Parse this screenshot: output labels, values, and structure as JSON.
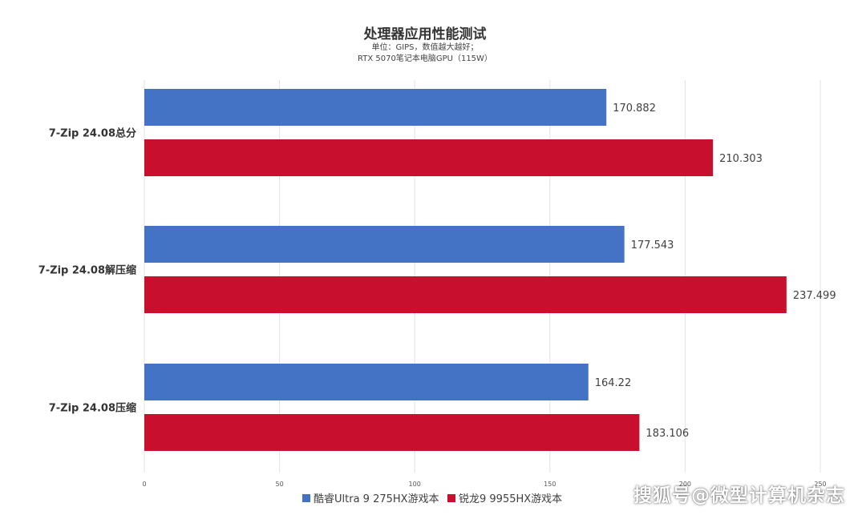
{
  "chart_data": {
    "type": "bar",
    "orientation": "horizontal",
    "title": "处理器应用性能测试",
    "subtitle_lines": [
      "单位：GIPS，数值越大越好；",
      "RTX 5070笔记本电脑GPU（115W）"
    ],
    "categories": [
      "7-Zip 24.08总分",
      "7-Zip 24.08解压缩",
      "7-Zip 24.08压缩"
    ],
    "series": [
      {
        "name": "酷睿Ultra 9 275HX游戏本",
        "color": "#4472c4",
        "values": [
          170.882,
          177.543,
          164.22
        ],
        "labels": [
          "170.882",
          "177.543",
          "164.22"
        ]
      },
      {
        "name": "锐龙9 9955HX游戏本",
        "color": "#c8102e",
        "values": [
          210.303,
          237.499,
          183.106
        ],
        "labels": [
          "210.303",
          "237.499",
          "183.106"
        ]
      }
    ],
    "xlim": [
      0,
      250
    ],
    "xticks": [
      0,
      50,
      100,
      150,
      200,
      250
    ],
    "grid": true,
    "legend_position": "bottom"
  },
  "watermark": "搜狐号@微型计算机杂志"
}
